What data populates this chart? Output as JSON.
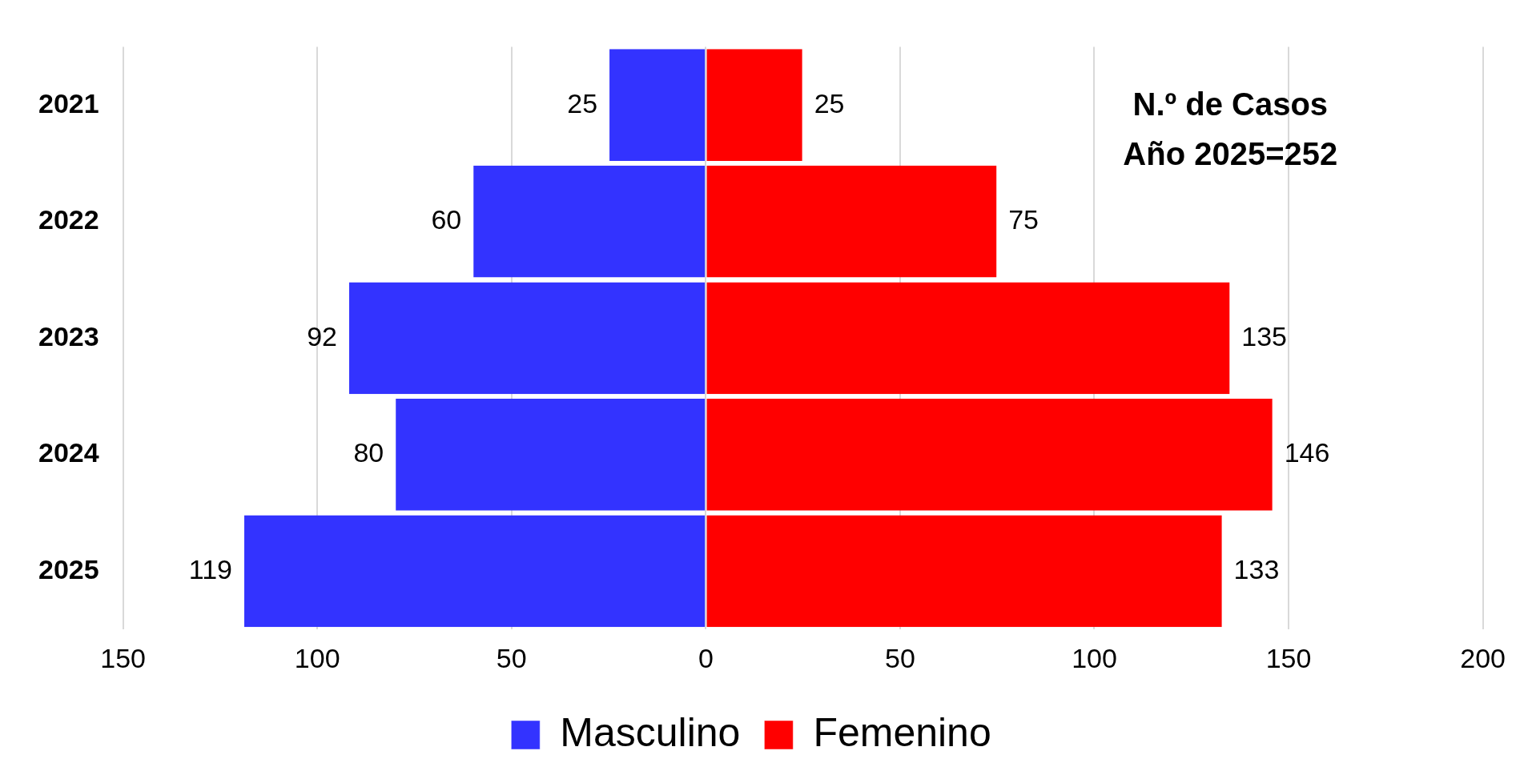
{
  "chart_data": {
    "type": "bar",
    "orientation": "horizontal",
    "categories": [
      "2021",
      "2022",
      "2023",
      "2024",
      "2025"
    ],
    "series": [
      {
        "name": "Masculino",
        "color": "#3333ff",
        "values": [
          25,
          60,
          92,
          80,
          119
        ],
        "base": [
          -25,
          -60,
          -92,
          -80,
          -119
        ]
      },
      {
        "name": "Femenino",
        "color": "#ff0000",
        "values": [
          25,
          75,
          135,
          146,
          133
        ]
      }
    ],
    "data_labels": true,
    "xlim": [
      -150,
      200
    ],
    "xticks": [
      {
        "value": -150,
        "label": "150"
      },
      {
        "value": -100,
        "label": "100"
      },
      {
        "value": -50,
        "label": "50"
      },
      0,
      50,
      100,
      150,
      200
    ],
    "grid": "x",
    "legend": "bottom",
    "annotations": [
      "N.º de Casos",
      "Año 2025=252"
    ]
  }
}
